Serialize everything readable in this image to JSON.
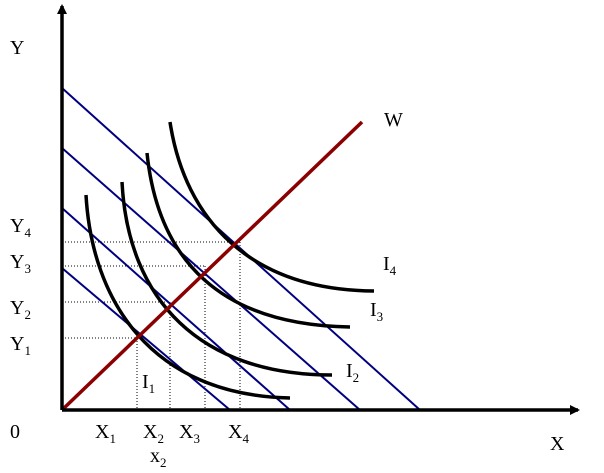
{
  "axes": {
    "y": "Y",
    "x": "X",
    "origin": "0"
  },
  "expansion_path": "W",
  "y_labels": [
    {
      "base": "Y",
      "sub": "1"
    },
    {
      "base": "Y",
      "sub": "2"
    },
    {
      "base": "Y",
      "sub": "3"
    },
    {
      "base": "Y",
      "sub": "4"
    }
  ],
  "x_labels": [
    {
      "base": "X",
      "sub": "1"
    },
    {
      "base": "X",
      "sub": "2"
    },
    {
      "base": "X",
      "sub": "3"
    },
    {
      "base": "X",
      "sub": "4"
    }
  ],
  "curves": [
    {
      "base": "I",
      "sub": "1"
    },
    {
      "base": "I",
      "sub": "2"
    },
    {
      "base": "I",
      "sub": "3"
    },
    {
      "base": "I",
      "sub": "4"
    }
  ],
  "extra_label": {
    "base": "x",
    "sub": "2"
  }
}
